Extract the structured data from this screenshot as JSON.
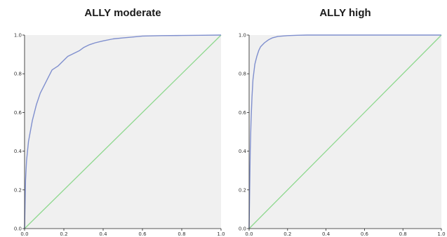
{
  "chart_data": [
    {
      "type": "line",
      "title": "ALLY moderate",
      "xlim": [
        0,
        1
      ],
      "ylim": [
        0,
        1
      ],
      "x_ticks": [
        "0.0",
        "0.2",
        "0.4",
        "0.6",
        "0.8",
        "1.0"
      ],
      "y_ticks": [
        "0.0",
        "0.2",
        "0.4",
        "0.6",
        "0.8",
        "1.0"
      ],
      "grid": false,
      "colors": {
        "curve": "#7f8fce",
        "reference": "#8ed88e",
        "plot_bg": "#f0f0f0"
      },
      "series": [
        {
          "role": "curve",
          "x": [
            0,
            0.005,
            0.01,
            0.02,
            0.04,
            0.06,
            0.08,
            0.1,
            0.12,
            0.14,
            0.17,
            0.2,
            0.22,
            0.25,
            0.28,
            0.3,
            0.33,
            0.36,
            0.4,
            0.45,
            0.5,
            0.55,
            0.6,
            0.7,
            0.8,
            0.9,
            1.0
          ],
          "y": [
            0,
            0.25,
            0.35,
            0.45,
            0.56,
            0.64,
            0.7,
            0.74,
            0.78,
            0.82,
            0.84,
            0.87,
            0.89,
            0.905,
            0.92,
            0.935,
            0.95,
            0.96,
            0.97,
            0.98,
            0.985,
            0.99,
            0.995,
            0.997,
            0.998,
            0.999,
            1.0
          ]
        },
        {
          "role": "reference",
          "x": [
            0,
            1
          ],
          "y": [
            0,
            1
          ]
        }
      ]
    },
    {
      "type": "line",
      "title": "ALLY high",
      "xlim": [
        0,
        1
      ],
      "ylim": [
        0,
        1
      ],
      "x_ticks": [
        "0.0",
        "0.2",
        "0.4",
        "0.6",
        "0.8",
        "1.0"
      ],
      "y_ticks": [
        "0.0",
        "0.2",
        "0.4",
        "0.6",
        "0.8",
        "1.0"
      ],
      "grid": false,
      "colors": {
        "curve": "#7f8fce",
        "reference": "#8ed88e",
        "plot_bg": "#f0f0f0"
      },
      "series": [
        {
          "role": "curve",
          "x": [
            0,
            0.003,
            0.006,
            0.01,
            0.015,
            0.02,
            0.03,
            0.04,
            0.05,
            0.06,
            0.08,
            0.1,
            0.12,
            0.15,
            0.2,
            0.25,
            0.3,
            0.5,
            1.0
          ],
          "y": [
            0,
            0.2,
            0.4,
            0.55,
            0.68,
            0.77,
            0.85,
            0.89,
            0.92,
            0.94,
            0.96,
            0.975,
            0.985,
            0.993,
            0.997,
            0.999,
            1.0,
            1.0,
            1.0
          ]
        },
        {
          "role": "reference",
          "x": [
            0,
            1
          ],
          "y": [
            0,
            1
          ]
        }
      ]
    }
  ]
}
